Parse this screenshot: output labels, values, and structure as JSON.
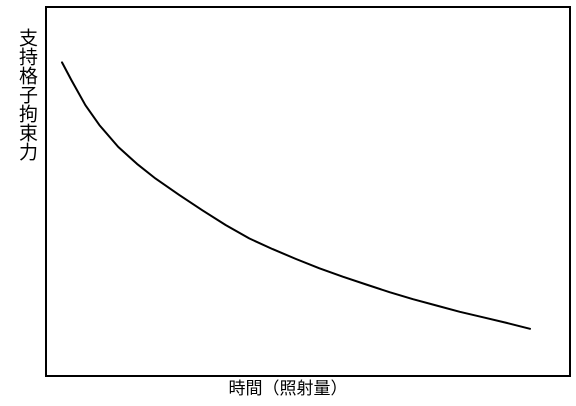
{
  "chart_data": {
    "type": "line",
    "title": "",
    "xlabel": "時間（照射量）",
    "ylabel": "支持格子拘束力",
    "grid": false,
    "legend": "none",
    "xlim": [
      0,
      100
    ],
    "ylim": [
      0,
      100
    ],
    "series": [
      {
        "name": "",
        "color": "#000000",
        "x": [
          0,
          2,
          5,
          8,
          12,
          16,
          20,
          25,
          30,
          35,
          40,
          45,
          50,
          55,
          60,
          65,
          70,
          75,
          80,
          85,
          90,
          95,
          100
        ],
        "y": [
          85,
          80.2,
          73.4,
          68,
          62.1,
          57.5,
          53.5,
          49.1,
          44.9,
          40.9,
          37.3,
          34.4,
          31.7,
          29.2,
          26.9,
          24.8,
          22.7,
          20.8,
          19.1,
          17.4,
          15.9,
          14.4,
          12.8
        ]
      }
    ]
  }
}
